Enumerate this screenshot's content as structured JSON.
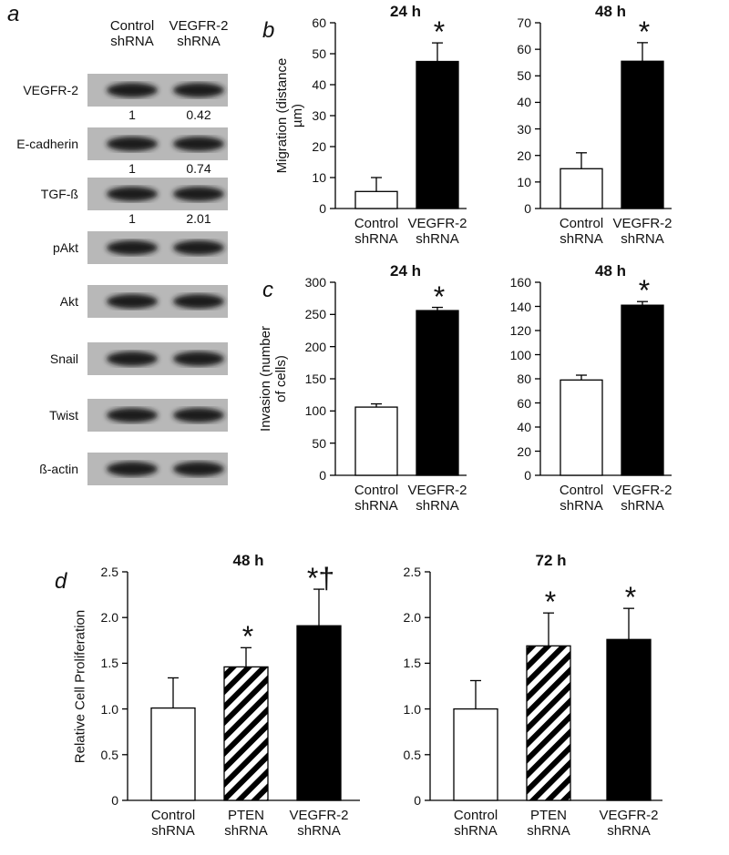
{
  "blot": {
    "label": "a",
    "columns": [
      "Control shRNA",
      "VEGFR-2 shRNA"
    ],
    "rows": [
      {
        "name": "VEGFR-2",
        "ratios": [
          1,
          0.42
        ]
      },
      {
        "name": "E-cadherin",
        "ratios": [
          1,
          0.74
        ]
      },
      {
        "name": "TGF-ß",
        "ratios": [
          1,
          2.01
        ]
      },
      {
        "name": "pAkt"
      },
      {
        "name": "Akt"
      },
      {
        "name": "Snail"
      },
      {
        "name": "Twist"
      },
      {
        "name": "ß-actin"
      }
    ]
  },
  "chart_data": [
    {
      "type": "bar",
      "panel": "b",
      "title": "24 h",
      "y_label": "Migration (distance µm)",
      "categories": [
        "Control shRNA",
        "VEGFR-2 shRNA"
      ],
      "values": [
        5.5,
        47.5
      ],
      "errors": [
        4.5,
        6
      ],
      "colors": [
        "#ffffff",
        "#000000"
      ],
      "hatched": [
        false,
        false
      ],
      "bar_annotations": [
        null,
        "*"
      ],
      "ylim": [
        0,
        60
      ],
      "yticks": [
        0,
        10,
        20,
        30,
        40,
        50,
        60
      ]
    },
    {
      "type": "bar",
      "title": "48 h",
      "categories": [
        "Control shRNA",
        "VEGFR-2 shRNA"
      ],
      "values": [
        15,
        55.5
      ],
      "errors": [
        6,
        7
      ],
      "colors": [
        "#ffffff",
        "#000000"
      ],
      "hatched": [
        false,
        false
      ],
      "bar_annotations": [
        null,
        "*"
      ],
      "ylim": [
        0,
        70
      ],
      "yticks": [
        0,
        10,
        20,
        30,
        40,
        50,
        60,
        70
      ]
    },
    {
      "type": "bar",
      "panel": "c",
      "title": "24 h",
      "y_label": "Invasion (number of cells)",
      "categories": [
        "Control shRNA",
        "VEGFR-2 shRNA"
      ],
      "values": [
        106,
        256
      ],
      "errors": [
        5,
        5
      ],
      "colors": [
        "#ffffff",
        "#000000"
      ],
      "hatched": [
        false,
        false
      ],
      "bar_annotations": [
        null,
        "*"
      ],
      "ylim": [
        0,
        300
      ],
      "yticks": [
        0,
        50,
        100,
        150,
        200,
        250,
        300
      ]
    },
    {
      "type": "bar",
      "title": "48 h",
      "categories": [
        "Control shRNA",
        "VEGFR-2 shRNA"
      ],
      "values": [
        79,
        141
      ],
      "errors": [
        4,
        3
      ],
      "colors": [
        "#ffffff",
        "#000000"
      ],
      "hatched": [
        false,
        false
      ],
      "bar_annotations": [
        null,
        "*"
      ],
      "ylim": [
        0,
        160
      ],
      "yticks": [
        0,
        20,
        40,
        60,
        80,
        100,
        120,
        140,
        160
      ]
    },
    {
      "type": "bar",
      "panel": "d",
      "title": "48 h",
      "y_label": "Relative Cell Proliferation",
      "categories": [
        "Control shRNA",
        "PTEN shRNA",
        "VEGFR-2 shRNA"
      ],
      "values": [
        1.01,
        1.46,
        1.91
      ],
      "errors": [
        0.33,
        0.21,
        0.4
      ],
      "colors": [
        "#ffffff",
        "#ffffff",
        "#000000"
      ],
      "hatched": [
        false,
        true,
        false
      ],
      "bar_annotations": [
        null,
        "*",
        "*†"
      ],
      "ylim": [
        0,
        2.5
      ],
      "yticks": [
        0,
        {
          "value": 0.5,
          "label": "0.5"
        },
        {
          "value": 1,
          "label": "1.0"
        },
        1.5,
        {
          "value": 2,
          "label": "2.0"
        },
        2.5
      ]
    },
    {
      "type": "bar",
      "title": "72 h",
      "categories": [
        "Control shRNA",
        "PTEN shRNA",
        "VEGFR-2 shRNA"
      ],
      "values": [
        1.0,
        1.69,
        1.76
      ],
      "errors": [
        0.31,
        0.36,
        0.34
      ],
      "colors": [
        "#ffffff",
        "#ffffff",
        "#000000"
      ],
      "hatched": [
        false,
        true,
        false
      ],
      "bar_annotations": [
        null,
        "*",
        "*"
      ],
      "ylim": [
        0,
        2.5
      ],
      "yticks": [
        0,
        {
          "value": 0.5,
          "label": "0.5"
        },
        {
          "value": 1,
          "label": "1.0"
        },
        1.5,
        {
          "value": 2,
          "label": "2.0"
        },
        2.5
      ]
    }
  ]
}
